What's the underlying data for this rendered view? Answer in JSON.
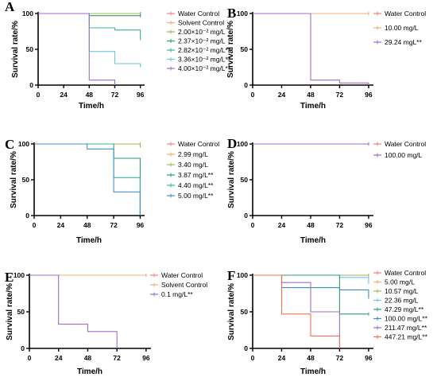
{
  "chart_data": [
    {
      "panel": "A",
      "type": "line",
      "step": true,
      "xlabel": "Time/h",
      "ylabel": "Survival rate/%",
      "xlim": [
        0,
        100
      ],
      "ylim": [
        0,
        100
      ],
      "xticks": [
        "0",
        "24",
        "48",
        "72",
        "96"
      ],
      "yticks": [
        "0",
        "50",
        "100"
      ],
      "legend_position": "right",
      "series": [
        {
          "name": "Water Control",
          "color": "#f08080",
          "points": [
            [
              0,
              100
            ],
            [
              96,
              100
            ]
          ]
        },
        {
          "name": "Solvent Control",
          "color": "#f0b070",
          "points": [
            [
              0,
              100
            ],
            [
              96,
              100
            ]
          ]
        },
        {
          "name": "2.00×10⁻² mg/L",
          "color": "#9bbb59",
          "points": [
            [
              0,
              100
            ],
            [
              96,
              100
            ]
          ]
        },
        {
          "name": "2.37×10⁻² mg/L",
          "color": "#2e9e6b",
          "points": [
            [
              0,
              100
            ],
            [
              48,
              100
            ],
            [
              48,
              97
            ],
            [
              96,
              97
            ]
          ]
        },
        {
          "name": "2.82×10⁻² mg/L**",
          "color": "#3cb3a0",
          "points": [
            [
              0,
              100
            ],
            [
              48,
              100
            ],
            [
              48,
              80
            ],
            [
              72,
              80
            ],
            [
              72,
              77
            ],
            [
              96,
              77
            ],
            [
              96,
              65
            ]
          ]
        },
        {
          "name": "3.36×10⁻² mg/L**",
          "color": "#6ec6e3",
          "points": [
            [
              0,
              100
            ],
            [
              48,
              100
            ],
            [
              48,
              47
            ],
            [
              72,
              47
            ],
            [
              72,
              30
            ],
            [
              96,
              30
            ],
            [
              96,
              27
            ]
          ]
        },
        {
          "name": "4.00×10⁻² mg/L**",
          "color": "#9b6fc4",
          "points": [
            [
              0,
              100
            ],
            [
              48,
              100
            ],
            [
              48,
              7
            ],
            [
              72,
              7
            ],
            [
              72,
              0
            ]
          ]
        }
      ]
    },
    {
      "panel": "B",
      "type": "line",
      "step": true,
      "xlabel": "Time/h",
      "ylabel": "Survival rate/%",
      "xlim": [
        0,
        100
      ],
      "ylim": [
        0,
        100
      ],
      "xticks": [
        "0",
        "24",
        "48",
        "72",
        "96"
      ],
      "yticks": [
        "0",
        "50",
        "100"
      ],
      "legend_position": "right",
      "series": [
        {
          "name": "Water Control",
          "color": "#f08080",
          "points": [
            [
              0,
              100
            ],
            [
              96,
              100
            ]
          ]
        },
        {
          "name": "10.00 mg/L",
          "color": "#f0b070",
          "points": [
            [
              0,
              100
            ],
            [
              96,
              100
            ]
          ]
        },
        {
          "name": "29.24 mgL**",
          "color": "#9b6fc4",
          "points": [
            [
              0,
              100
            ],
            [
              48,
              100
            ],
            [
              48,
              7
            ],
            [
              72,
              7
            ],
            [
              72,
              3
            ],
            [
              96,
              3
            ],
            [
              96,
              0
            ]
          ]
        }
      ]
    },
    {
      "panel": "C",
      "type": "line",
      "step": true,
      "xlabel": "Time/h",
      "ylabel": "Survival rate/%",
      "xlim": [
        0,
        100
      ],
      "ylim": [
        0,
        100
      ],
      "xticks": [
        "0",
        "24",
        "48",
        "72",
        "96"
      ],
      "yticks": [
        "0",
        "50",
        "100"
      ],
      "legend_position": "right",
      "series": [
        {
          "name": "Water Control",
          "color": "#f08080",
          "points": [
            [
              0,
              100
            ],
            [
              96,
              100
            ],
            [
              96,
              97
            ]
          ]
        },
        {
          "name": "2.99 mg/L",
          "color": "#f0b070",
          "points": [
            [
              0,
              100
            ],
            [
              96,
              100
            ]
          ]
        },
        {
          "name": "3.40 mg/L",
          "color": "#9bbb59",
          "points": [
            [
              0,
              100
            ],
            [
              96,
              100
            ]
          ]
        },
        {
          "name": "3.87 mg/L**",
          "color": "#2e9e6b",
          "points": [
            [
              0,
              100
            ],
            [
              72,
              100
            ],
            [
              72,
              80
            ],
            [
              96,
              80
            ],
            [
              96,
              0
            ]
          ]
        },
        {
          "name": "4.40 mg/L**",
          "color": "#3cb3a0",
          "points": [
            [
              0,
              100
            ],
            [
              72,
              100
            ],
            [
              72,
              53
            ],
            [
              96,
              53
            ],
            [
              96,
              0
            ]
          ]
        },
        {
          "name": "5.00 mg/L**",
          "color": "#4a90c8",
          "points": [
            [
              0,
              100
            ],
            [
              48,
              100
            ],
            [
              48,
              93
            ],
            [
              72,
              93
            ],
            [
              72,
              33
            ],
            [
              96,
              33
            ],
            [
              96,
              0
            ]
          ]
        }
      ]
    },
    {
      "panel": "D",
      "type": "line",
      "step": true,
      "xlabel": "Time/h",
      "ylabel": "Survival rate/%",
      "xlim": [
        0,
        100
      ],
      "ylim": [
        0,
        100
      ],
      "xticks": [
        "0",
        "24",
        "48",
        "72",
        "96"
      ],
      "yticks": [
        "0",
        "50",
        "100"
      ],
      "legend_position": "right",
      "series": [
        {
          "name": "Water Control",
          "color": "#f08080",
          "points": [
            [
              0,
              100
            ],
            [
              96,
              100
            ]
          ]
        },
        {
          "name": "100.00 mg/L",
          "color": "#9b6fc4",
          "points": [
            [
              0,
              100
            ],
            [
              96,
              100
            ]
          ]
        }
      ]
    },
    {
      "panel": "E",
      "type": "line",
      "step": true,
      "xlabel": "Time/h",
      "ylabel": "Survival rate/%",
      "xlim": [
        0,
        100
      ],
      "ylim": [
        0,
        100
      ],
      "xticks": [
        "0",
        "24",
        "48",
        "72",
        "96"
      ],
      "yticks": [
        "0",
        "50",
        "100"
      ],
      "legend_position": "right",
      "series": [
        {
          "name": "Water Control",
          "color": "#f08080",
          "points": [
            [
              0,
              100
            ],
            [
              96,
              100
            ]
          ]
        },
        {
          "name": "Solvent Control",
          "color": "#f0b070",
          "points": [
            [
              0,
              100
            ],
            [
              96,
              100
            ]
          ]
        },
        {
          "name": "0.1 mg/L**",
          "color": "#9b6fc4",
          "points": [
            [
              0,
              100
            ],
            [
              24,
              100
            ],
            [
              24,
              33
            ],
            [
              48,
              33
            ],
            [
              48,
              23
            ],
            [
              72,
              23
            ],
            [
              72,
              0
            ]
          ]
        }
      ]
    },
    {
      "panel": "F",
      "type": "line",
      "step": true,
      "xlabel": "Time/h",
      "ylabel": "Survival rate/%",
      "xlim": [
        0,
        100
      ],
      "ylim": [
        0,
        100
      ],
      "xticks": [
        "0",
        "24",
        "48",
        "72",
        "96"
      ],
      "yticks": [
        "0",
        "50",
        "100"
      ],
      "legend_position": "right",
      "series": [
        {
          "name": "Water Control",
          "color": "#f08080",
          "points": [
            [
              0,
              100
            ],
            [
              96,
              100
            ]
          ]
        },
        {
          "name": "5.00 mg/L",
          "color": "#f0b070",
          "points": [
            [
              0,
              100
            ],
            [
              96,
              100
            ]
          ]
        },
        {
          "name": "10.57 mg/L",
          "color": "#9bbb59",
          "points": [
            [
              0,
              100
            ],
            [
              96,
              100
            ]
          ]
        },
        {
          "name": "22.36 mg/L",
          "color": "#6ec6e3",
          "points": [
            [
              0,
              100
            ],
            [
              72,
              100
            ],
            [
              72,
              97
            ],
            [
              96,
              97
            ],
            [
              96,
              90
            ]
          ]
        },
        {
          "name": "47.29 mg/L**",
          "color": "#2e9e6b",
          "points": [
            [
              0,
              100
            ],
            [
              72,
              100
            ],
            [
              72,
              47
            ],
            [
              96,
              47
            ]
          ]
        },
        {
          "name": "100.00 mg/L**",
          "color": "#3a8fc0",
          "points": [
            [
              0,
              100
            ],
            [
              24,
              100
            ],
            [
              24,
              83
            ],
            [
              72,
              83
            ],
            [
              72,
              80
            ],
            [
              96,
              80
            ],
            [
              96,
              70
            ]
          ]
        },
        {
          "name": "211.47 mg/L**",
          "color": "#9b6fc4",
          "points": [
            [
              0,
              100
            ],
            [
              24,
              100
            ],
            [
              24,
              90
            ],
            [
              48,
              90
            ],
            [
              48,
              50
            ],
            [
              72,
              50
            ],
            [
              72,
              0
            ]
          ]
        },
        {
          "name": "447.21 mg/L**",
          "color": "#f07050",
          "points": [
            [
              0,
              100
            ],
            [
              24,
              100
            ],
            [
              24,
              47
            ],
            [
              48,
              47
            ],
            [
              48,
              17
            ],
            [
              72,
              17
            ],
            [
              72,
              0
            ]
          ]
        }
      ]
    }
  ]
}
